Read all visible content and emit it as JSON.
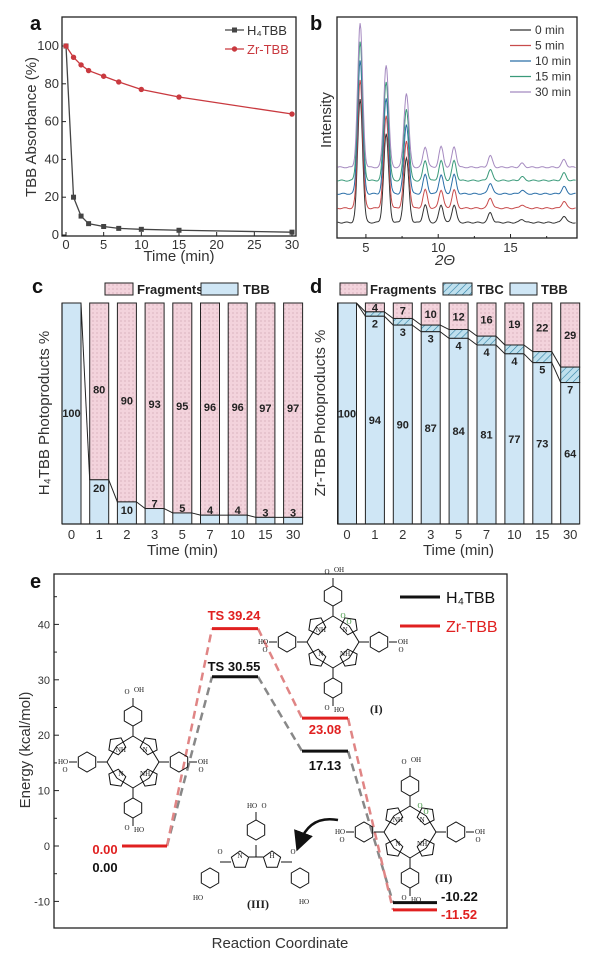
{
  "panels": {
    "a": "a",
    "b": "b",
    "c": "c",
    "d": "d",
    "e": "e"
  },
  "atom_labels": {
    "ho": "HO",
    "oh": "OH",
    "nh": "NH",
    "hn": "HN",
    "n": "N",
    "o": "O",
    "h": "H"
  },
  "chart_data": [
    {
      "type": "line",
      "xlabel": "Time (min)",
      "ylabel": "TBB Absorbance (%)",
      "xlim": [
        0,
        30
      ],
      "ylim": [
        0,
        115
      ],
      "xticks": [
        0,
        5,
        10,
        15,
        20,
        25,
        30
      ],
      "yticks": [
        0,
        20,
        40,
        60,
        80,
        100
      ],
      "legend_position": "top-right",
      "x": [
        0,
        1,
        2,
        3,
        5,
        7,
        10,
        15,
        30
      ],
      "series": [
        {
          "name": "H₄TBB",
          "color": "#444444",
          "marker": "square",
          "values": [
            100,
            20,
            10,
            6,
            4.5,
            3.5,
            3,
            2.5,
            1.5
          ]
        },
        {
          "name": "Zr-TBB",
          "color": "#c9393f",
          "marker": "circle",
          "values": [
            100,
            94,
            90,
            87,
            84,
            81,
            77,
            73,
            64
          ]
        }
      ]
    },
    {
      "type": "line",
      "xlabel": "2Θ",
      "ylabel": "Intensity",
      "xlim": [
        3,
        19.6
      ],
      "xticks": [
        5,
        10,
        15
      ],
      "legend_position": "top-right",
      "peaks_2theta": [
        4.6,
        6.4,
        7.8,
        9.1,
        10.2,
        11.1,
        13.6,
        15.8,
        18.7
      ],
      "peak_intensity": [
        56,
        40,
        29,
        8,
        8,
        8,
        4.5,
        1.5,
        3
      ],
      "series": [
        {
          "name": "0 min",
          "color": "#333333",
          "offset": 7
        },
        {
          "name": "5 min",
          "color": "#c84b4b",
          "offset": 13.5
        },
        {
          "name": "10 min",
          "color": "#2a6fa8",
          "offset": 20
        },
        {
          "name": "15 min",
          "color": "#3a9a7a",
          "offset": 26
        },
        {
          "name": "30 min",
          "color": "#a58ac0",
          "offset": 32
        }
      ]
    },
    {
      "type": "bar",
      "stacked": true,
      "xlabel": "Time (min)",
      "ylabel": "H₄TBB Photoproducts %",
      "categories": [
        "0",
        "1",
        "2",
        "3",
        "5",
        "7",
        "10",
        "15",
        "30"
      ],
      "legend": [
        "Fragments",
        "TBB"
      ],
      "tbb": [
        100,
        20,
        10,
        7,
        5,
        4,
        4,
        3,
        3
      ],
      "fragments": [
        0,
        80,
        90,
        93,
        95,
        96,
        96,
        97,
        97
      ],
      "colors": {
        "fragments": "#f3d3dc",
        "tbb": "#cfe6f5"
      }
    },
    {
      "type": "bar",
      "stacked": true,
      "xlabel": "Time (min)",
      "ylabel": "Zr-TBB Photoproducts %",
      "categories": [
        "0",
        "1",
        "2",
        "3",
        "5",
        "7",
        "10",
        "15",
        "30"
      ],
      "legend": [
        "Fragments",
        "TBC",
        "TBB"
      ],
      "tbb": [
        100,
        94,
        90,
        87,
        84,
        81,
        77,
        73,
        64
      ],
      "tbc": [
        0,
        2,
        3,
        3,
        4,
        4,
        4,
        5,
        7
      ],
      "fragments": [
        0,
        4,
        7,
        10,
        12,
        16,
        19,
        22,
        29
      ],
      "colors": {
        "fragments": "#f3d3dc",
        "tbc": "#bfe0ee",
        "tbb": "#cfe6f5"
      }
    },
    {
      "type": "line",
      "subtype": "energy-level-diagram",
      "xlabel": "Reaction Coordinate",
      "ylabel": "Energy (kcal/mol)",
      "ylim": [
        -15,
        45
      ],
      "yticks": [
        -10,
        0,
        10,
        20,
        30,
        40
      ],
      "legend_position": "top-right",
      "structure_labels": [
        "(I)",
        "(II)",
        "(III)"
      ],
      "series": [
        {
          "name": "H₄TBB",
          "color": "#111111",
          "values": [
            0,
            30.55,
            17.13,
            -10.22
          ],
          "labels": [
            "0.00",
            "TS 30.55",
            "17.13",
            "-10.22"
          ]
        },
        {
          "name": "Zr-TBB",
          "color": "#e02020",
          "values": [
            0,
            39.24,
            23.08,
            -11.52
          ],
          "labels": [
            "0.00",
            "TS 39.24",
            "23.08",
            "-11.52"
          ]
        }
      ]
    }
  ]
}
